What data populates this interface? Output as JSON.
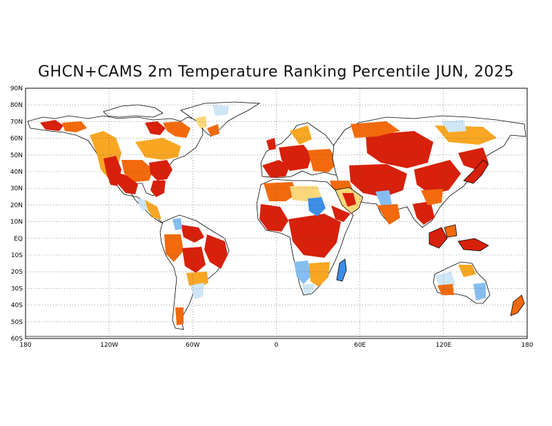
{
  "title": "GHCN+CAMS 2m Temperature Ranking Percentile JUN, 2025",
  "map": {
    "projection": "equirectangular",
    "lon_range": [
      -180,
      180
    ],
    "lat_range": [
      -60,
      90
    ],
    "grid": true,
    "grid_style": "dotted",
    "lat_labels": [
      "90N",
      "80N",
      "70N",
      "60N",
      "50N",
      "40N",
      "30N",
      "20N",
      "10N",
      "EQ",
      "10S",
      "20S",
      "30S",
      "40S",
      "50S",
      "60S"
    ],
    "lon_labels": [
      "180",
      "120W",
      "60W",
      "0",
      "60E",
      "120E",
      "180"
    ],
    "lon_label_values": [
      -180,
      -120,
      -60,
      0,
      60,
      120,
      180
    ],
    "colors": {
      "warmest": "#d8200a",
      "very_warm": "#f26a0c",
      "warm": "#f9a623",
      "slightly_warm": "#fcd77a",
      "near_normal": "#ffffff",
      "slightly_cool": "#cfe6f7",
      "cool": "#86bdf0",
      "very_cool": "#3d8ee6"
    }
  }
}
